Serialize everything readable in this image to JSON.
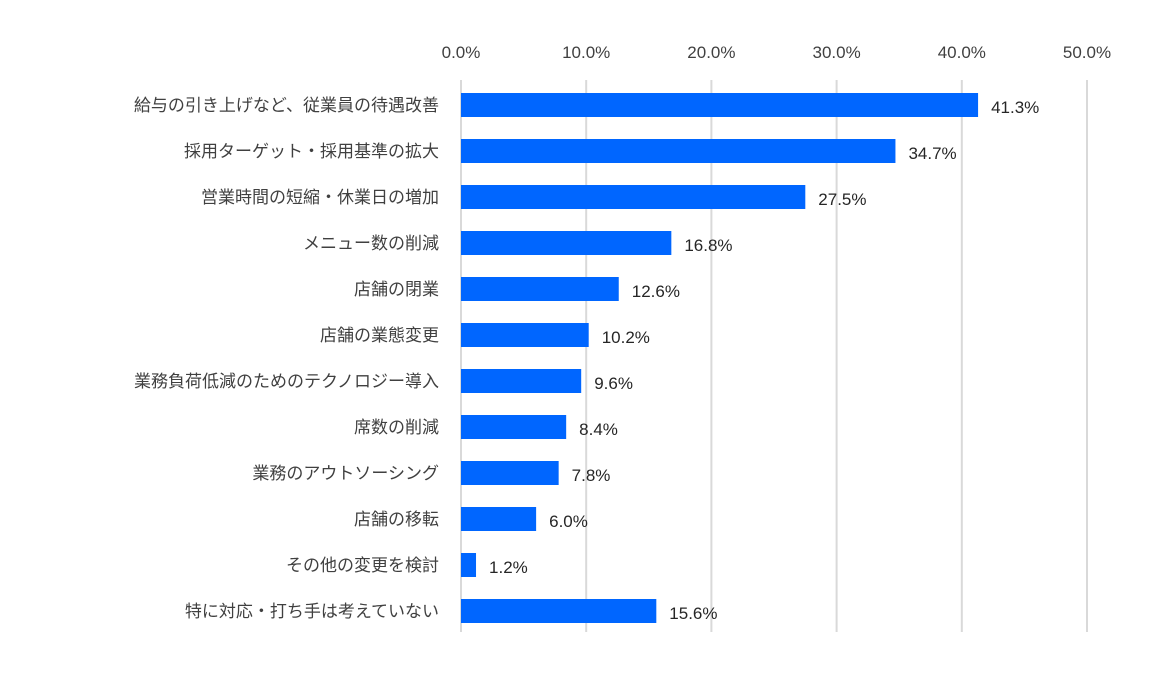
{
  "chart_data": {
    "type": "bar",
    "orientation": "horizontal",
    "title": "",
    "xlabel": "",
    "ylabel": "",
    "xlim": [
      0,
      50
    ],
    "tick_values": [
      0,
      10,
      20,
      30,
      40,
      50
    ],
    "tick_labels": [
      "0.0%",
      "10.0%",
      "20.0%",
      "30.0%",
      "40.0%",
      "50.0%"
    ],
    "axis_position": "top",
    "grid": true,
    "categories": [
      "給与の引き上げなど、従業員の待遇改善",
      "採用ターゲット・採用基準の拡大",
      "営業時間の短縮・休業日の増加",
      "メニュー数の削減",
      "店舗の閉業",
      "店舗の業態変更",
      "業務負荷低減のためのテクノロジー導入",
      "席数の削減",
      "業務のアウトソーシング",
      "店舗の移転",
      "その他の変更を検討",
      "特に対応・打ち手は考えていない"
    ],
    "values": [
      41.3,
      34.7,
      27.5,
      16.8,
      12.6,
      10.2,
      9.6,
      8.4,
      7.8,
      6.0,
      1.2,
      15.6
    ],
    "value_labels": [
      "41.3%",
      "34.7%",
      "27.5%",
      "16.8%",
      "12.6%",
      "10.2%",
      "9.6%",
      "8.4%",
      "7.8%",
      "6.0%",
      "1.2%",
      "15.6%"
    ],
    "bar_color": "#0066ff",
    "grid_color": "#d9d9d9"
  }
}
